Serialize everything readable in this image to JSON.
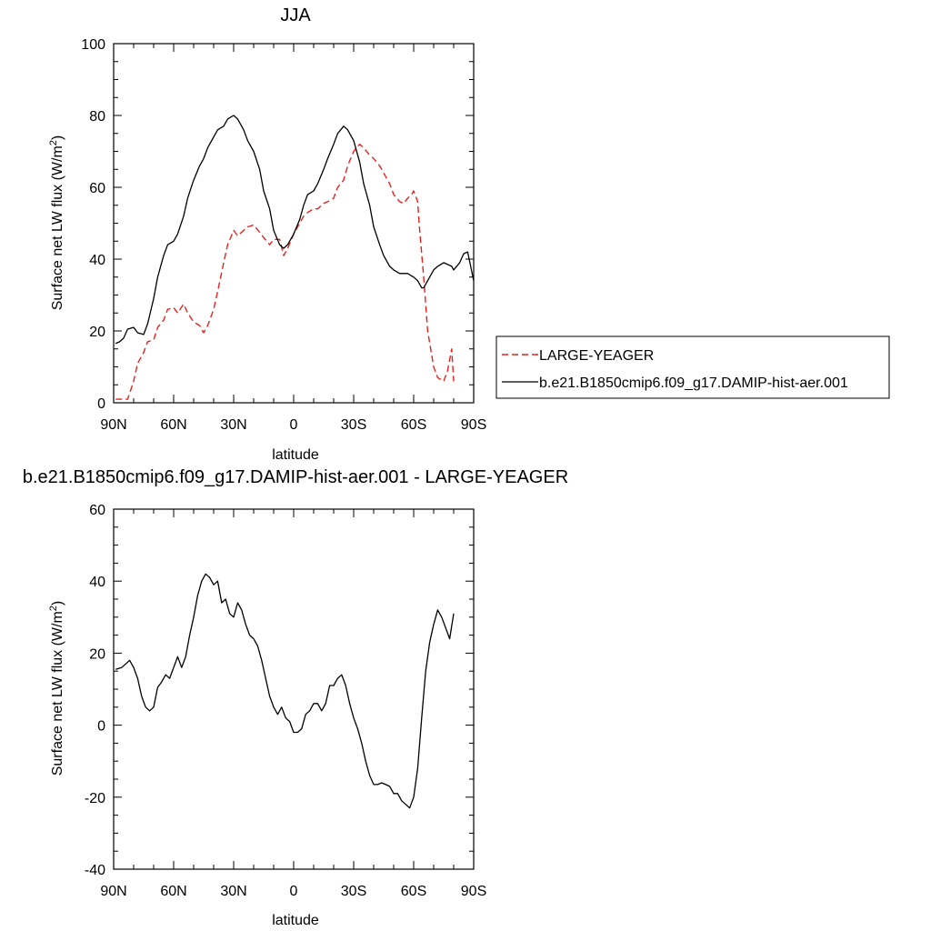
{
  "colors": {
    "model": "#000000",
    "obs": "#e8211d",
    "frame": "#000000"
  },
  "chart_data": [
    {
      "type": "line",
      "title": "JJA",
      "xlabel": "latitude",
      "ylabel_main": "Surface net LW flux (W/m",
      "ylabel_sup": "2",
      "ylabel_end": ")",
      "xlim": [
        90,
        -90
      ],
      "ylim": [
        0,
        100
      ],
      "xticks": [
        90,
        60,
        30,
        0,
        -30,
        -60,
        -90
      ],
      "xtick_labels": [
        "90N",
        "60N",
        "30N",
        "0",
        "30S",
        "60S",
        "90S"
      ],
      "yticks": [
        0,
        20,
        40,
        60,
        80,
        100
      ],
      "ytick_labels": [
        "0",
        "20",
        "40",
        "60",
        "80",
        "100"
      ],
      "legend": {
        "placement": "right",
        "entries": [
          "LARGE-YEAGER",
          "b.e21.B1850cmip6.f09_g17.DAMIP-hist-aer.001"
        ]
      },
      "series": [
        {
          "name": "LARGE-YEAGER",
          "style": "dashed",
          "color": "#e8211d",
          "x": [
            89,
            85,
            83,
            80,
            78,
            75,
            73,
            70,
            68,
            65,
            63,
            60,
            58,
            55,
            53,
            50,
            47,
            45,
            43,
            40,
            38,
            35,
            33,
            30,
            28,
            25,
            23,
            20,
            17,
            15,
            12,
            10,
            7,
            5,
            3,
            0,
            -3,
            -5,
            -7,
            -10,
            -12,
            -15,
            -17,
            -20,
            -22,
            -25,
            -27,
            -30,
            -33,
            -35,
            -38,
            -40,
            -43,
            -45,
            -48,
            -50,
            -53,
            -55,
            -57,
            -59,
            -60,
            -62,
            -63,
            -65,
            -67,
            -70,
            -72,
            -75,
            -77,
            -79,
            -80
          ],
          "y": [
            1,
            1,
            1,
            6,
            11,
            14,
            17,
            17.5,
            21,
            23,
            26,
            26.5,
            25,
            27.5,
            25,
            22.5,
            21.5,
            19.5,
            21.5,
            26,
            31,
            39,
            44,
            48,
            46.5,
            48,
            49,
            49.5,
            47.5,
            46,
            44,
            45.5,
            45.5,
            41,
            43,
            47,
            50,
            52,
            53,
            54,
            54,
            55.5,
            56,
            57,
            60,
            62,
            66,
            70,
            72,
            71,
            69,
            68,
            66,
            64,
            61,
            58,
            56,
            55.5,
            57,
            58,
            59,
            56,
            48,
            35,
            20,
            10,
            7,
            6,
            9,
            15,
            6
          ]
        },
        {
          "name": "b.e21.B1850cmip6.f09_g17.DAMIP-hist-aer.001",
          "style": "solid",
          "color": "#000000",
          "x": [
            89,
            87,
            85,
            83,
            80,
            78,
            75,
            73,
            70,
            68,
            65,
            63,
            60,
            58,
            55,
            53,
            50,
            47,
            45,
            43,
            40,
            38,
            35,
            33,
            30,
            28,
            25,
            23,
            20,
            17,
            15,
            12,
            10,
            7,
            5,
            3,
            0,
            -3,
            -5,
            -7,
            -10,
            -12,
            -15,
            -17,
            -20,
            -22,
            -25,
            -27,
            -30,
            -33,
            -35,
            -38,
            -40,
            -43,
            -45,
            -48,
            -50,
            -53,
            -55,
            -57,
            -60,
            -62,
            -64,
            -65,
            -67,
            -70,
            -72,
            -75,
            -77,
            -79,
            -80,
            -83,
            -85,
            -87,
            -90
          ],
          "y": [
            16.5,
            17,
            18,
            20.5,
            21,
            19.5,
            19,
            22,
            29,
            35,
            41,
            44,
            45,
            47,
            52,
            57,
            62,
            66,
            68,
            71,
            74,
            76,
            77,
            79,
            80,
            79,
            76,
            73,
            70,
            65,
            59,
            54,
            48,
            44,
            43,
            44,
            47,
            51,
            55,
            58,
            59,
            61,
            65,
            68,
            72,
            75,
            77,
            76,
            73,
            67,
            61,
            55,
            49,
            44,
            41,
            38,
            37,
            36,
            36,
            36,
            35,
            34,
            32,
            32,
            34,
            37,
            38,
            39,
            38.5,
            38,
            37,
            39,
            41.5,
            42,
            34
          ]
        }
      ]
    },
    {
      "type": "line",
      "title": "b.e21.B1850cmip6.f09_g17.DAMIP-hist-aer.001 - LARGE-YEAGER",
      "xlabel": "latitude",
      "ylabel_main": "Surface net LW flux (W/m",
      "ylabel_sup": "2",
      "ylabel_end": ")",
      "xlim": [
        90,
        -90
      ],
      "ylim": [
        -40,
        60
      ],
      "xticks": [
        90,
        60,
        30,
        0,
        -30,
        -60,
        -90
      ],
      "xtick_labels": [
        "90N",
        "60N",
        "30N",
        "0",
        "30S",
        "60S",
        "90S"
      ],
      "yticks": [
        -40,
        -20,
        0,
        20,
        40,
        60
      ],
      "ytick_labels": [
        "-40",
        "-20",
        "0",
        "20",
        "40",
        "60"
      ],
      "series": [
        {
          "name": "",
          "style": "solid",
          "color": "#000000",
          "x": [
            89,
            86,
            84,
            82,
            80,
            78,
            76,
            74,
            72,
            70,
            68,
            66,
            64,
            62,
            60,
            58,
            56,
            54,
            52,
            50,
            48,
            46,
            44,
            42,
            40,
            38,
            36,
            34,
            32,
            30,
            28,
            26,
            24,
            22,
            20,
            18,
            16,
            14,
            12,
            10,
            8,
            6,
            4,
            2,
            0,
            -2,
            -4,
            -6,
            -8,
            -10,
            -12,
            -14,
            -16,
            -18,
            -20,
            -22,
            -24,
            -26,
            -28,
            -30,
            -32,
            -34,
            -36,
            -38,
            -40,
            -42,
            -44,
            -46,
            -48,
            -50,
            -52,
            -54,
            -56,
            -58,
            -60,
            -62,
            -64,
            -66,
            -68,
            -70,
            -72,
            -74,
            -76,
            -78,
            -80
          ],
          "y": [
            15.5,
            16,
            17,
            18,
            16,
            13,
            8,
            5,
            4,
            5,
            10.5,
            12,
            14,
            13,
            16,
            19,
            16,
            19,
            25,
            30,
            36,
            40,
            42,
            41,
            39,
            40,
            34,
            35,
            31,
            30,
            34,
            32,
            28,
            25,
            24,
            22,
            18,
            13,
            8,
            5,
            3,
            5,
            2,
            1,
            -2,
            -2,
            -1,
            3,
            4,
            6,
            6,
            4,
            6,
            11,
            11,
            13,
            14,
            11,
            6,
            2,
            -1,
            -5,
            -10,
            -14,
            -16.5,
            -16.5,
            -16,
            -16.5,
            -17,
            -19,
            -19,
            -21,
            -22,
            -23,
            -20,
            -12,
            2,
            15,
            23,
            28,
            32,
            30,
            27,
            24,
            31
          ]
        }
      ]
    }
  ]
}
